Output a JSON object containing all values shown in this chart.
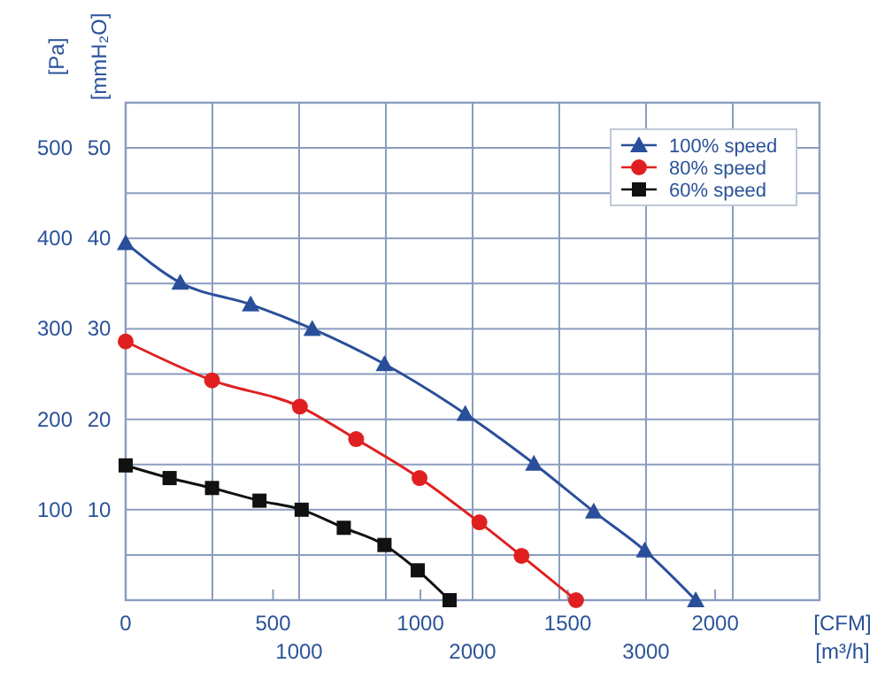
{
  "chart_data": {
    "type": "line",
    "xlabel": "[CFM]",
    "x2label": "[m³/h]",
    "ylabel": "[Pa]",
    "y2label": "[mmH₂O]",
    "xlim": [
      0,
      2354
    ],
    "xticks": [
      0,
      500,
      1000,
      1500,
      2000
    ],
    "x2lim": [
      0,
      4000
    ],
    "x2ticks": [
      {
        "value": 500,
        "label": null
      },
      1000,
      {
        "value": 1500,
        "label": null
      },
      2000,
      {
        "value": 2500,
        "label": null
      },
      3000,
      {
        "value": 3500,
        "label": null
      }
    ],
    "ylim": [
      0,
      550
    ],
    "yticks": [
      {
        "value": 50,
        "label": null
      },
      100,
      {
        "value": 150,
        "label": null
      },
      200,
      {
        "value": 250,
        "label": null
      },
      300,
      {
        "value": 350,
        "label": null
      },
      400,
      {
        "value": 450,
        "label": null
      },
      500
    ],
    "y2lim": [
      0,
      55
    ],
    "y2ticks": [
      10,
      20,
      30,
      40,
      50
    ],
    "grid": true,
    "legend": "top right",
    "series": [
      {
        "name": "100% speed",
        "color": "#2a4f9a",
        "marker": "triangle",
        "x": [
          0,
          185,
          424,
          633,
          878,
          1152,
          1385,
          1588,
          1761,
          1934
        ],
        "values": [
          395,
          351,
          327,
          300,
          261,
          206,
          151,
          98,
          55,
          0
        ]
      },
      {
        "name": "80% speed",
        "color": "#e02020",
        "marker": "circle",
        "x": [
          0,
          293,
          591,
          782,
          997,
          1200,
          1343,
          1528
        ],
        "values": [
          286,
          243,
          214,
          178,
          135,
          86,
          49,
          0
        ]
      },
      {
        "name": "60% speed",
        "color": "#111111",
        "marker": "square",
        "x": [
          0,
          149,
          293,
          454,
          597,
          740,
          878,
          991,
          1099
        ],
        "values": [
          149,
          135,
          124,
          110,
          100,
          80,
          61,
          33,
          0
        ]
      }
    ]
  }
}
